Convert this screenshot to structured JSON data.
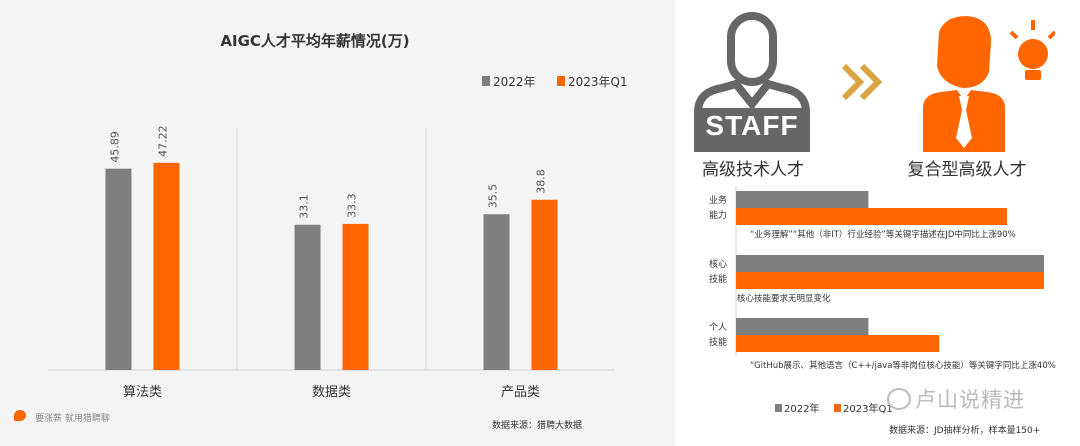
{
  "colors": {
    "gray": "#7f7f7f",
    "orange": "#ff6600",
    "dark": "#333333",
    "gold": "#d9a441"
  },
  "left_chart": {
    "chart_data": {
      "type": "bar",
      "title": "AIGC人才平均年薪情况(万)",
      "categories": [
        "算法类",
        "数据类",
        "产品类"
      ],
      "series": [
        {
          "name": "2022年",
          "values": [
            45.89,
            33.1,
            35.5
          ]
        },
        {
          "name": "2023年Q1",
          "values": [
            47.22,
            33.3,
            38.8
          ]
        }
      ],
      "value_labels": [
        [
          "45.89",
          "33.1",
          "35.5"
        ],
        [
          "47.22",
          "33.3",
          "38.8"
        ]
      ],
      "ylim": [
        0,
        62
      ],
      "legend": "top-right",
      "grid": false
    },
    "footer_left": "要涨薪 就用猎聘聊",
    "source": "数据来源：猎聘大数据"
  },
  "right_panel": {
    "staff_badge": "STAFF",
    "left_label": "高级技术人才",
    "right_label": "复合型高级人才",
    "chart_data": {
      "type": "bar",
      "orientation": "horizontal",
      "categories": [
        "业务能力",
        "核心技能",
        "个人技能"
      ],
      "series": [
        {
          "name": "2022年",
          "values": [
            0.43,
            1.0,
            0.43
          ]
        },
        {
          "name": "2023年Q1",
          "values": [
            0.88,
            1.0,
            0.66
          ]
        }
      ],
      "legend": "bottom-left"
    },
    "cat_lines": [
      [
        "业务",
        "能力"
      ],
      [
        "核心",
        "技能"
      ],
      [
        "个人",
        "技能"
      ]
    ],
    "notes": [
      "“业务理解”“其他（非IT）行业经验”等关键字描述在JD中同比上涨90%",
      "核心技能要求无明显变化",
      "“GitHub展示、其他语言（C++/java等非岗位核心技能）等关键字同比上涨40%"
    ],
    "watermark": "卢山说精进",
    "source": "数据来源：JD抽样分析，样本量150+"
  }
}
